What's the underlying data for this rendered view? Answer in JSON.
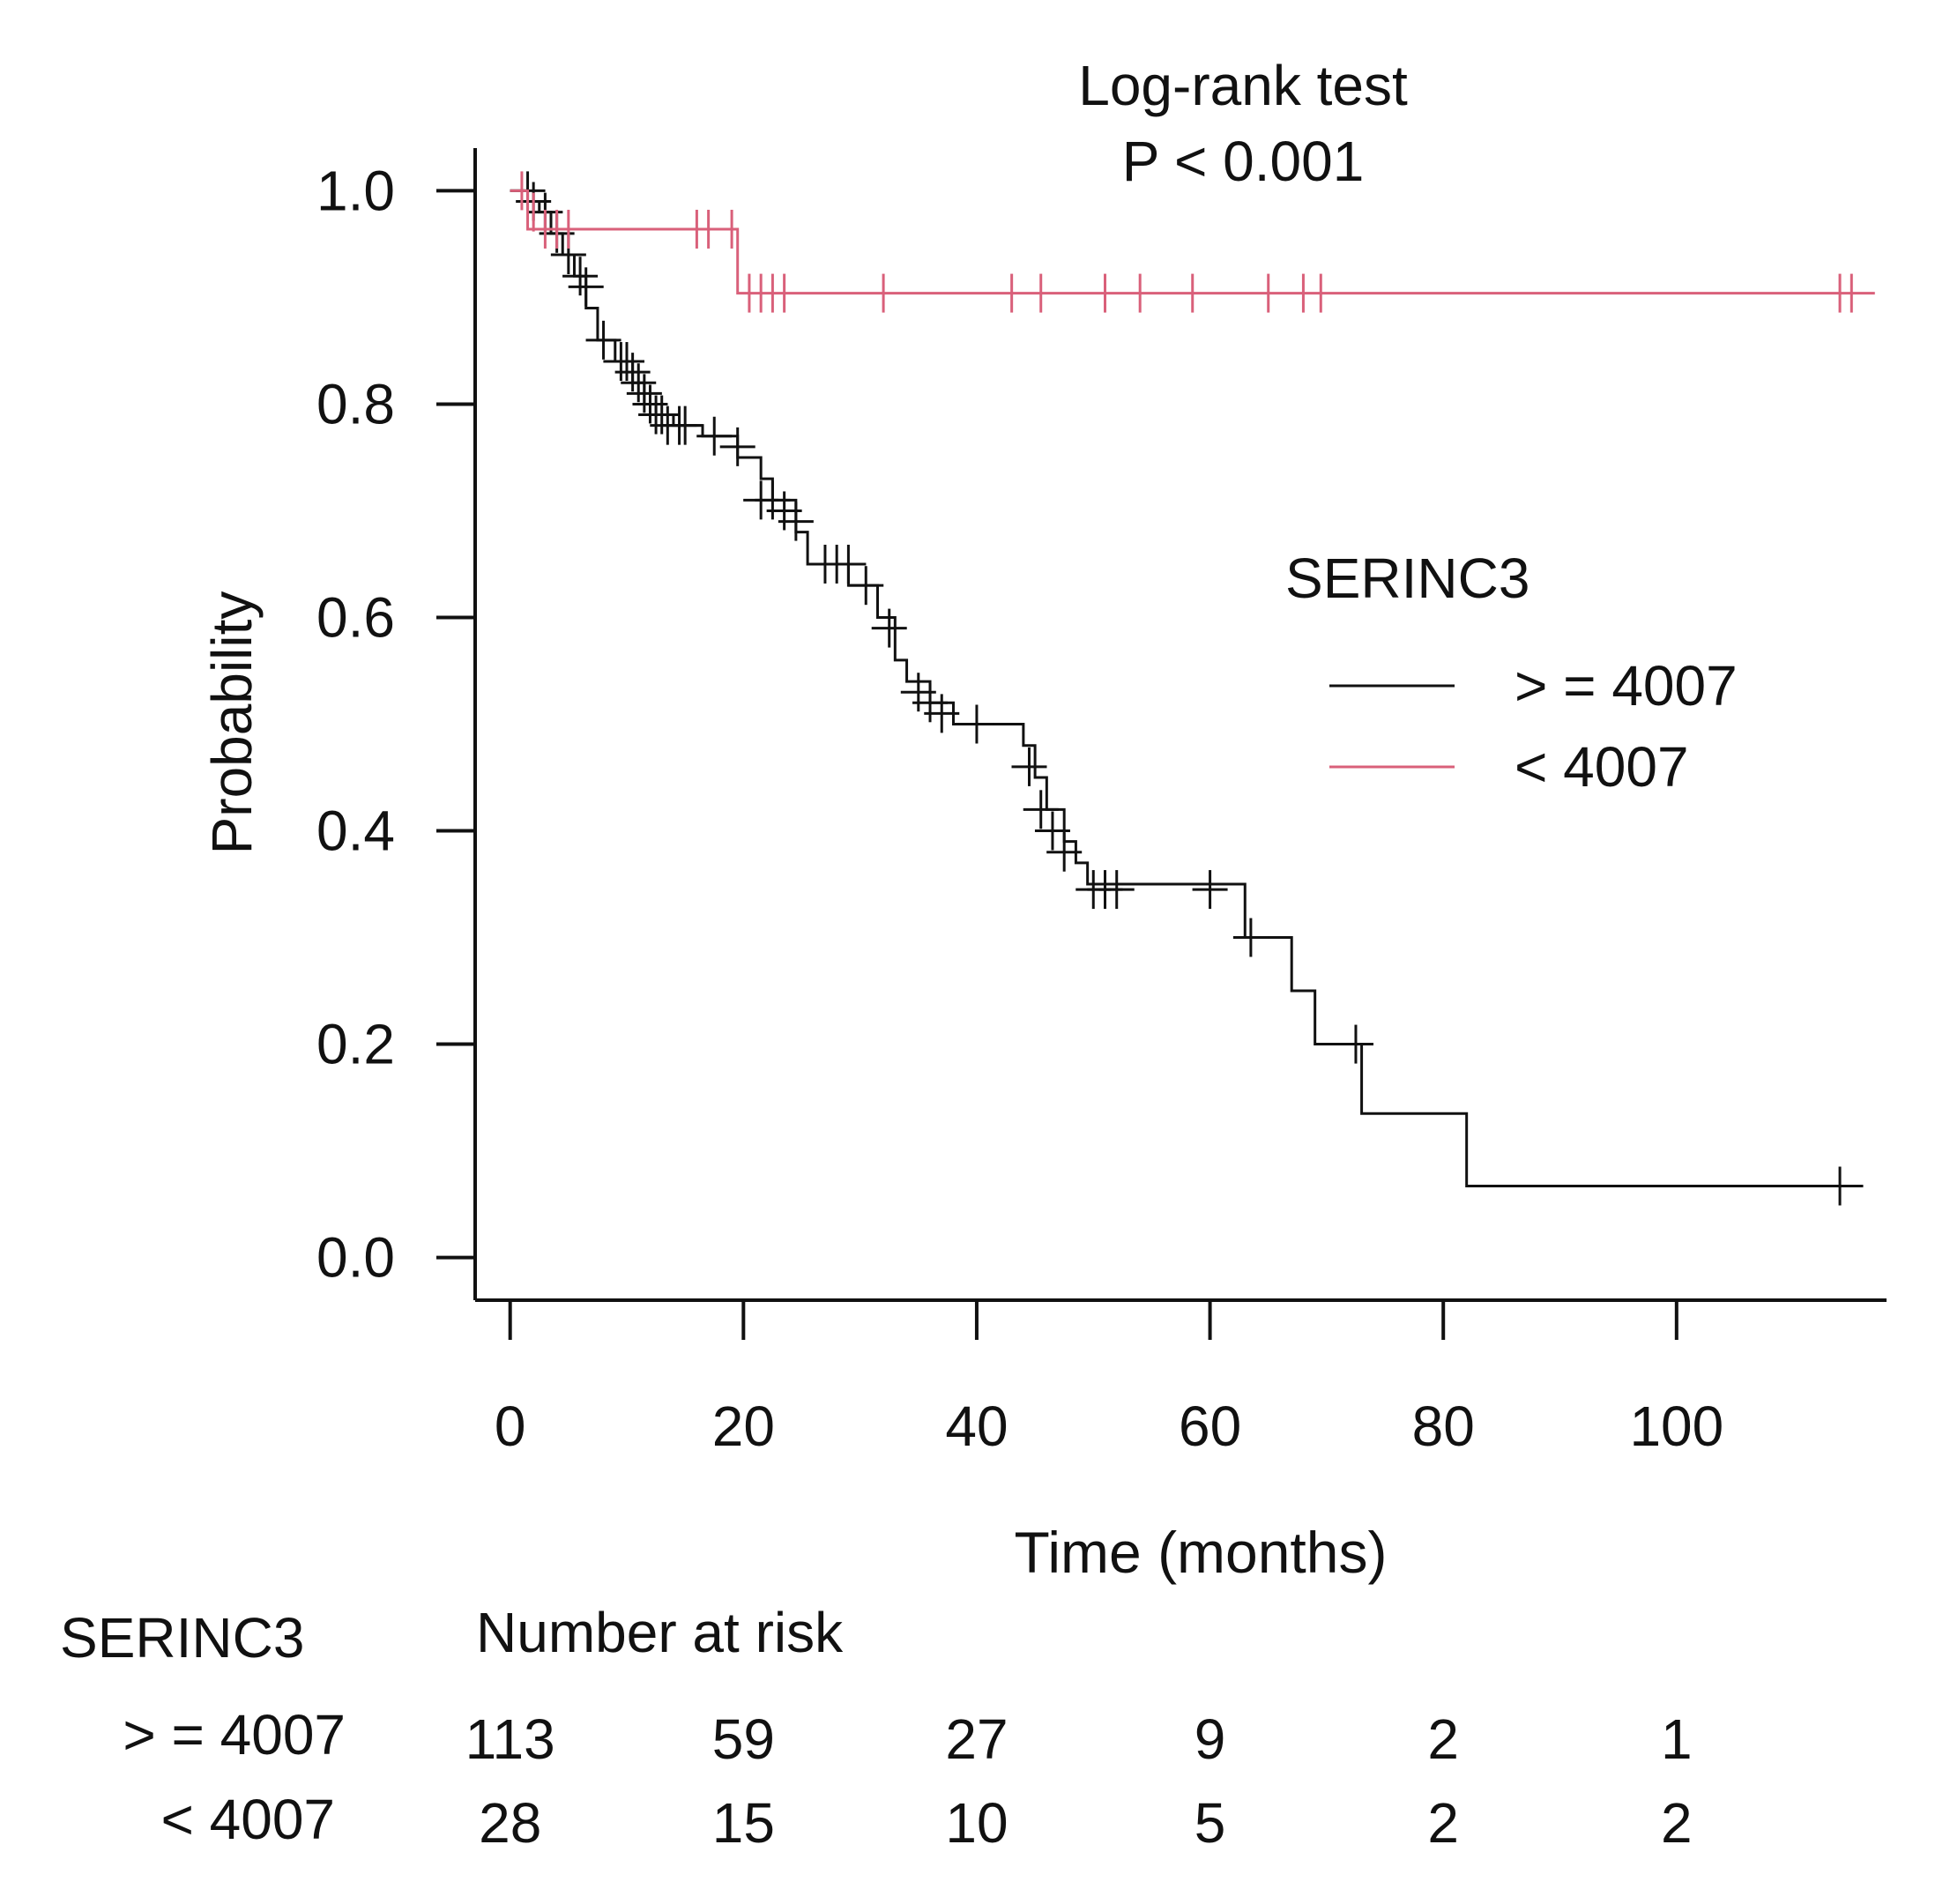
{
  "chart_data": {
    "type": "line",
    "subtype": "kaplan-meier",
    "title_line1": "Log-rank test",
    "title_line2": "P < 0.001",
    "xlabel": "Time (months)",
    "ylabel": "Probability",
    "xlim": [
      -3,
      118
    ],
    "ylim": [
      -0.04,
      1.04
    ],
    "xticks": [
      0,
      20,
      40,
      60,
      80,
      100
    ],
    "xtick_labels": [
      "0",
      "20",
      "40",
      "60",
      "80",
      "100"
    ],
    "yticks": [
      0.0,
      0.2,
      0.4,
      0.6,
      0.8,
      1.0
    ],
    "ytick_labels": [
      "0.0",
      "0.2",
      "0.4",
      "0.6",
      "0.8",
      "1.0"
    ],
    "legend": {
      "title": "SERINC3",
      "placement": "middle-right",
      "entries": [
        {
          "label": "> = 4007",
          "color": "#111111"
        },
        {
          "label": "< 4007",
          "color": "#d9607a"
        }
      ]
    },
    "series": [
      {
        "name": "> = 4007",
        "color": "#111111",
        "steps": [
          [
            0,
            1.0
          ],
          [
            1.5,
            0.99
          ],
          [
            2.5,
            0.98
          ],
          [
            3.5,
            0.96
          ],
          [
            4.5,
            0.94
          ],
          [
            5.5,
            0.92
          ],
          [
            6.5,
            0.89
          ],
          [
            7.5,
            0.86
          ],
          [
            9,
            0.84
          ],
          [
            10.5,
            0.82
          ],
          [
            11.5,
            0.8
          ],
          [
            12.5,
            0.79
          ],
          [
            14,
            0.78
          ],
          [
            16.5,
            0.77
          ],
          [
            19.5,
            0.75
          ],
          [
            21.5,
            0.73
          ],
          [
            22.5,
            0.71
          ],
          [
            24.5,
            0.68
          ],
          [
            25.5,
            0.65
          ],
          [
            29,
            0.63
          ],
          [
            31.5,
            0.6
          ],
          [
            33,
            0.56
          ],
          [
            34,
            0.54
          ],
          [
            36,
            0.52
          ],
          [
            38,
            0.5
          ],
          [
            44,
            0.48
          ],
          [
            45,
            0.45
          ],
          [
            46,
            0.42
          ],
          [
            47.5,
            0.39
          ],
          [
            48.5,
            0.37
          ],
          [
            49.5,
            0.35
          ],
          [
            63,
            0.3
          ],
          [
            67,
            0.25
          ],
          [
            69,
            0.2
          ],
          [
            73,
            0.135
          ],
          [
            82,
            0.067
          ]
        ],
        "end_x": 116,
        "censor": [
          [
            1.5,
            1.0
          ],
          [
            2,
            0.99
          ],
          [
            3,
            0.98
          ],
          [
            4,
            0.96
          ],
          [
            5,
            0.94
          ],
          [
            6,
            0.92
          ],
          [
            6.5,
            0.91
          ],
          [
            8,
            0.86
          ],
          [
            9.5,
            0.84
          ],
          [
            10,
            0.84
          ],
          [
            10.5,
            0.83
          ],
          [
            11,
            0.82
          ],
          [
            11.5,
            0.81
          ],
          [
            12,
            0.8
          ],
          [
            12.5,
            0.79
          ],
          [
            13,
            0.79
          ],
          [
            13.5,
            0.78
          ],
          [
            14.5,
            0.78
          ],
          [
            15,
            0.78
          ],
          [
            17.5,
            0.77
          ],
          [
            19.5,
            0.76
          ],
          [
            21.5,
            0.71
          ],
          [
            22.5,
            0.71
          ],
          [
            23.5,
            0.7
          ],
          [
            24.5,
            0.69
          ],
          [
            27,
            0.65
          ],
          [
            28,
            0.65
          ],
          [
            29,
            0.65
          ],
          [
            30.5,
            0.63
          ],
          [
            32.5,
            0.59
          ],
          [
            35,
            0.53
          ],
          [
            36,
            0.52
          ],
          [
            37,
            0.51
          ],
          [
            40,
            0.5
          ],
          [
            44.5,
            0.46
          ],
          [
            45.5,
            0.42
          ],
          [
            46.5,
            0.4
          ],
          [
            47.5,
            0.38
          ],
          [
            50,
            0.345
          ],
          [
            51,
            0.345
          ],
          [
            52,
            0.345
          ],
          [
            60,
            0.345
          ],
          [
            63.5,
            0.3
          ],
          [
            72.5,
            0.2
          ],
          [
            114,
            0.067
          ]
        ]
      },
      {
        "name": "< 4007",
        "color": "#d9607a",
        "steps": [
          [
            0,
            1.0
          ],
          [
            1.5,
            0.964
          ],
          [
            19.5,
            0.904
          ]
        ],
        "end_x": 117,
        "censor": [
          [
            1,
            1.0
          ],
          [
            2,
            0.98
          ],
          [
            3,
            0.964
          ],
          [
            4,
            0.964
          ],
          [
            5,
            0.964
          ],
          [
            16,
            0.964
          ],
          [
            17,
            0.964
          ],
          [
            19,
            0.964
          ],
          [
            20.5,
            0.904
          ],
          [
            21.5,
            0.904
          ],
          [
            22.5,
            0.904
          ],
          [
            23.5,
            0.904
          ],
          [
            32,
            0.904
          ],
          [
            43,
            0.904
          ],
          [
            45.5,
            0.904
          ],
          [
            51,
            0.904
          ],
          [
            54,
            0.904
          ],
          [
            58.5,
            0.904
          ],
          [
            65,
            0.904
          ],
          [
            68,
            0.904
          ],
          [
            69.5,
            0.904
          ],
          [
            114,
            0.904
          ],
          [
            115,
            0.904
          ]
        ]
      }
    ],
    "risk_table": {
      "group_title": "SERINC3",
      "header": "Number at risk",
      "times": [
        0,
        20,
        40,
        60,
        80,
        100
      ],
      "rows": [
        {
          "label": "> = 4007",
          "counts": [
            "113",
            "59",
            "27",
            "9",
            "2",
            "1"
          ]
        },
        {
          "label": "< 4007",
          "counts": [
            "28",
            "15",
            "10",
            "5",
            "2",
            "2"
          ]
        }
      ]
    }
  }
}
